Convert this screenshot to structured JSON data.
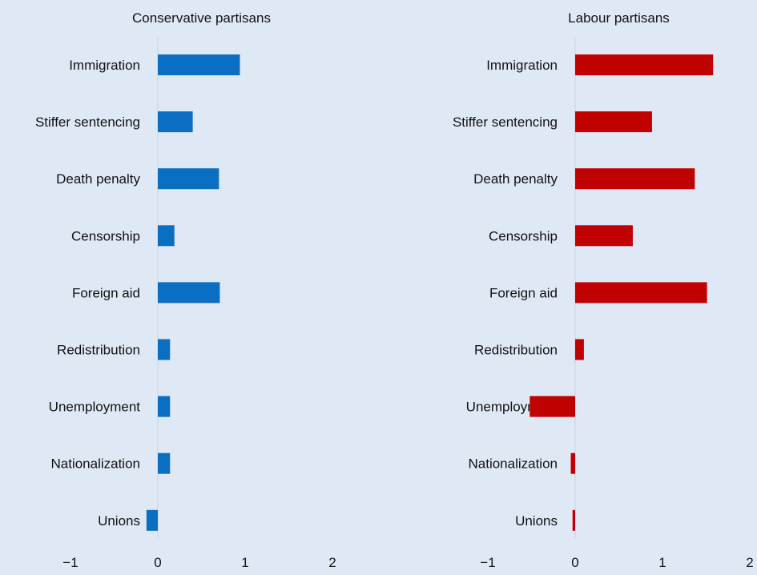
{
  "chart_data": [
    {
      "type": "bar",
      "orientation": "horizontal",
      "title": "Conservative partisans",
      "categories": [
        "Immigration",
        "Stiffer sentencing",
        "Death penalty",
        "Censorship",
        "Foreign aid",
        "Redistribution",
        "Unemployment",
        "Nationalization",
        "Unions"
      ],
      "values": [
        0.94,
        0.4,
        0.7,
        0.19,
        0.71,
        0.14,
        0.14,
        0.14,
        -0.13
      ],
      "xlim": [
        -1,
        2
      ],
      "xticks": [
        "−1",
        "0",
        "1",
        "2"
      ],
      "color": "#0a6fc2",
      "grid": false
    },
    {
      "type": "bar",
      "orientation": "horizontal",
      "title": "Labour partisans",
      "categories": [
        "Immigration",
        "Stiffer sentencing",
        "Death penalty",
        "Censorship",
        "Foreign aid",
        "Redistribution",
        "Unemployment",
        "Nationalization",
        "Unions"
      ],
      "values": [
        1.58,
        0.88,
        1.37,
        0.66,
        1.51,
        0.1,
        -0.52,
        -0.05,
        -0.03
      ],
      "xlim": [
        -1,
        2
      ],
      "xticks": [
        "−1",
        "0",
        "1",
        "2"
      ],
      "color": "#c10000",
      "grid": false
    }
  ]
}
